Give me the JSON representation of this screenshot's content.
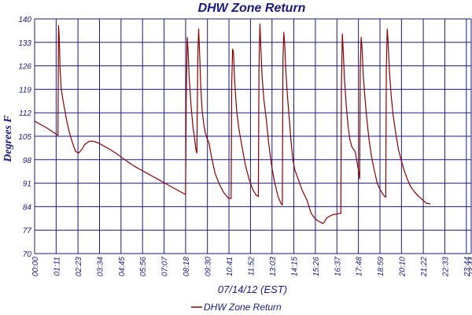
{
  "chart_data": {
    "type": "line",
    "title": "DHW Zone Return",
    "xlabel": "07/14/12 (EST)",
    "ylabel": "Degrees F",
    "ylim": [
      70,
      140
    ],
    "yticks": [
      70,
      77,
      84,
      91,
      98,
      105,
      112,
      119,
      126,
      133,
      140
    ],
    "xlim": [
      0,
      1440
    ],
    "xticks": [
      {
        "t": 0,
        "label": "00:00"
      },
      {
        "t": 71,
        "label": "01:11"
      },
      {
        "t": 143,
        "label": "02:23"
      },
      {
        "t": 214,
        "label": "03:34"
      },
      {
        "t": 285,
        "label": "04:45"
      },
      {
        "t": 356,
        "label": "05:56"
      },
      {
        "t": 427,
        "label": "07:07"
      },
      {
        "t": 498,
        "label": "08:18"
      },
      {
        "t": 570,
        "label": "09:30"
      },
      {
        "t": 641,
        "label": "10:41"
      },
      {
        "t": 712,
        "label": "11:52"
      },
      {
        "t": 783,
        "label": "13:03"
      },
      {
        "t": 855,
        "label": "14:15"
      },
      {
        "t": 926,
        "label": "15:26"
      },
      {
        "t": 997,
        "label": "16:37"
      },
      {
        "t": 1068,
        "label": "17:48"
      },
      {
        "t": 1139,
        "label": "18:59"
      },
      {
        "t": 1210,
        "label": "20:10"
      },
      {
        "t": 1282,
        "label": "21:22"
      },
      {
        "t": 1353,
        "label": "22:33"
      },
      {
        "t": 1424,
        "label": "23:44"
      },
      {
        "t": 1440,
        "label": "23:44"
      }
    ],
    "grid": true,
    "legend_position": "bottom-center",
    "series": [
      {
        "name": "DHW Zone Return",
        "color": "#8b0000",
        "points": [
          [
            0,
            109.5
          ],
          [
            20,
            108.5
          ],
          [
            40,
            107.5
          ],
          [
            60,
            106.3
          ],
          [
            77,
            105.3
          ],
          [
            79,
            138
          ],
          [
            81,
            135
          ],
          [
            84,
            125
          ],
          [
            88,
            119
          ],
          [
            95,
            115
          ],
          [
            105,
            110
          ],
          [
            115,
            106
          ],
          [
            125,
            103
          ],
          [
            135,
            100.5
          ],
          [
            145,
            100
          ],
          [
            155,
            101
          ],
          [
            165,
            102.5
          ],
          [
            180,
            103.5
          ],
          [
            195,
            103.5
          ],
          [
            210,
            103
          ],
          [
            230,
            102
          ],
          [
            250,
            101
          ],
          [
            270,
            99.8
          ],
          [
            290,
            98.5
          ],
          [
            310,
            97.2
          ],
          [
            330,
            96
          ],
          [
            350,
            95
          ],
          [
            370,
            94
          ],
          [
            390,
            93
          ],
          [
            410,
            92
          ],
          [
            430,
            91
          ],
          [
            450,
            90
          ],
          [
            470,
            89
          ],
          [
            490,
            88
          ],
          [
            498,
            87.6
          ],
          [
            500,
            115
          ],
          [
            503,
            134.5
          ],
          [
            506,
            131
          ],
          [
            510,
            122
          ],
          [
            516,
            114
          ],
          [
            522,
            108
          ],
          [
            528,
            104
          ],
          [
            532,
            101
          ],
          [
            535,
            100
          ],
          [
            538,
            128
          ],
          [
            541,
            137
          ],
          [
            544,
            130
          ],
          [
            548,
            120
          ],
          [
            552,
            113
          ],
          [
            558,
            108.5
          ],
          [
            563,
            106
          ],
          [
            568,
            104.5
          ],
          [
            575,
            103
          ],
          [
            583,
            99
          ],
          [
            595,
            94
          ],
          [
            610,
            90.5
          ],
          [
            625,
            88
          ],
          [
            640,
            86.5
          ],
          [
            648,
            86.4
          ],
          [
            650,
            120
          ],
          [
            653,
            131
          ],
          [
            656,
            130
          ],
          [
            660,
            121
          ],
          [
            666,
            113
          ],
          [
            674,
            107
          ],
          [
            684,
            102
          ],
          [
            696,
            96
          ],
          [
            708,
            92
          ],
          [
            720,
            89
          ],
          [
            730,
            87.5
          ],
          [
            738,
            87
          ],
          [
            740,
            125
          ],
          [
            743,
            138.5
          ],
          [
            746,
            132
          ],
          [
            750,
            123
          ],
          [
            756,
            116
          ],
          [
            764,
            110
          ],
          [
            772,
            103
          ],
          [
            782,
            96
          ],
          [
            792,
            91
          ],
          [
            803,
            87
          ],
          [
            812,
            85
          ],
          [
            817,
            84.5
          ],
          [
            819,
            128
          ],
          [
            822,
            136
          ],
          [
            825,
            132
          ],
          [
            829,
            124
          ],
          [
            834,
            117
          ],
          [
            840,
            110
          ],
          [
            846,
            103
          ],
          [
            852,
            98
          ],
          [
            858,
            95
          ],
          [
            866,
            93
          ],
          [
            874,
            91
          ],
          [
            882,
            89
          ],
          [
            890,
            87.5
          ],
          [
            898,
            86
          ],
          [
            905,
            84
          ],
          [
            912,
            82
          ],
          [
            920,
            81
          ],
          [
            930,
            80
          ],
          [
            940,
            79.5
          ],
          [
            950,
            79
          ],
          [
            955,
            79.3
          ],
          [
            962,
            80.5
          ],
          [
            970,
            81
          ],
          [
            980,
            81.5
          ],
          [
            995,
            81.8
          ],
          [
            1010,
            82
          ],
          [
            1012,
            120
          ],
          [
            1015,
            135.5
          ],
          [
            1018,
            130
          ],
          [
            1022,
            122
          ],
          [
            1028,
            114
          ],
          [
            1034,
            108
          ],
          [
            1040,
            104
          ],
          [
            1046,
            102
          ],
          [
            1052,
            101
          ],
          [
            1057,
            100.5
          ],
          [
            1062,
            98
          ],
          [
            1068,
            95
          ],
          [
            1072,
            92.3
          ],
          [
            1074,
            125
          ],
          [
            1077,
            134.5
          ],
          [
            1080,
            131
          ],
          [
            1084,
            123
          ],
          [
            1090,
            116
          ],
          [
            1096,
            110
          ],
          [
            1103,
            104
          ],
          [
            1111,
            99
          ],
          [
            1120,
            95
          ],
          [
            1130,
            91
          ],
          [
            1140,
            89
          ],
          [
            1150,
            87.5
          ],
          [
            1158,
            86.8
          ],
          [
            1160,
            125
          ],
          [
            1163,
            137
          ],
          [
            1166,
            133
          ],
          [
            1170,
            125
          ],
          [
            1176,
            117
          ],
          [
            1183,
            111
          ],
          [
            1191,
            106
          ],
          [
            1200,
            101
          ],
          [
            1210,
            97.5
          ],
          [
            1220,
            94.5
          ],
          [
            1230,
            92
          ],
          [
            1240,
            90
          ],
          [
            1252,
            88.5
          ],
          [
            1265,
            87.2
          ],
          [
            1280,
            86
          ],
          [
            1292,
            85
          ],
          [
            1305,
            84.8
          ]
        ]
      }
    ]
  }
}
